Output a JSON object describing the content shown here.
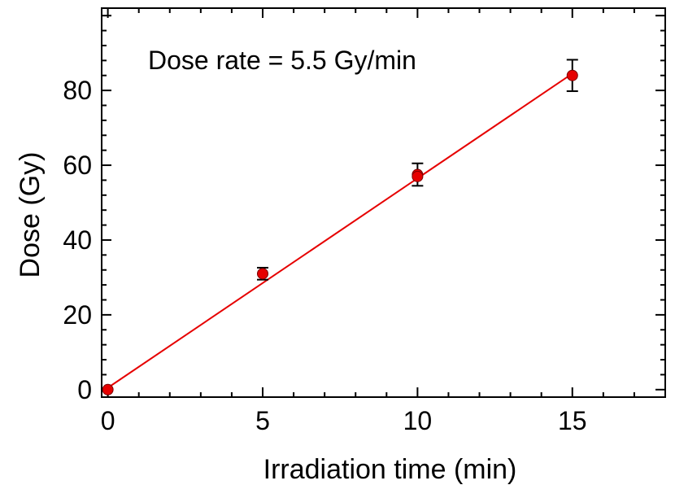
{
  "chart_data": {
    "type": "scatter",
    "xlabel": "Irradiation time (min)",
    "ylabel": "Dose (Gy)",
    "xlim": [
      -0.2,
      18
    ],
    "ylim": [
      -2,
      102
    ],
    "x_ticks": [
      0,
      5,
      10,
      15
    ],
    "x_tick_labels": [
      "0",
      "5",
      "10",
      "15"
    ],
    "y_ticks": [
      0,
      20,
      40,
      60,
      80
    ],
    "y_tick_labels": [
      "0",
      "20",
      "40",
      "60",
      "80"
    ],
    "grid": false,
    "annotation": "Dose rate = 5.5 Gy/min",
    "series": [
      {
        "type": "scatter",
        "x": [
          0,
          5,
          10,
          10,
          15
        ],
        "y": [
          0,
          31,
          57.5,
          57,
          84
        ],
        "error": [
          0,
          1.6,
          3,
          0,
          4.2
        ],
        "color": "#e60000"
      }
    ],
    "fit_line": {
      "x": [
        0,
        15
      ],
      "y": [
        0.5,
        84.5
      ],
      "color": "#e60000"
    }
  }
}
